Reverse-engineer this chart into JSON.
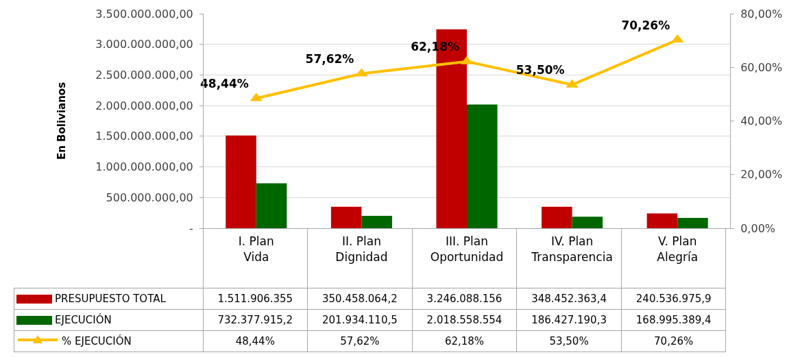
{
  "chart_data": {
    "type": "bar",
    "categories": [
      "I. Plan Vida",
      "II. Plan Dignidad",
      "III. Plan Oportunidad",
      "IV. Plan Transparencia",
      "V. Plan Alegría"
    ],
    "series": [
      {
        "name": "PRESUPUESTO TOTAL",
        "color": "#c00000",
        "values": [
          1511906355,
          350458064.2,
          3246088156,
          348452363.4,
          240536975.9
        ],
        "value_labels": [
          "1.511.906.355",
          "350.458.064,2",
          "3.246.088.156",
          "348.452.363,4",
          "240.536.975,9"
        ]
      },
      {
        "name": "EJECUCIÓN",
        "color": "#006600",
        "values": [
          732377915.2,
          201934110.5,
          2018558554,
          186427190.3,
          168995389.4
        ],
        "value_labels": [
          "732.377.915,2",
          "201.934.110,5",
          "2.018.558.554",
          "186.427.190,3",
          "168.995.389,4"
        ]
      },
      {
        "name": "% EJECUCIÓN",
        "type": "line",
        "axis": "y2",
        "color": "#ffc000",
        "values": [
          48.44,
          57.62,
          62.18,
          53.5,
          70.26
        ],
        "value_labels": [
          "48,44%",
          "57,62%",
          "62,18%",
          "53,50%",
          "70,26%"
        ]
      }
    ],
    "ylabel": "En Bolivianos",
    "ylim": [
      0,
      3500000000
    ],
    "yticks": [
      {
        "value": 0,
        "label": "-"
      },
      {
        "value": 500000000,
        "label": "500.000.000,00"
      },
      {
        "value": 1000000000,
        "label": "1.000.000.000,00"
      },
      {
        "value": 1500000000,
        "label": "1.500.000.000,00"
      },
      {
        "value": 2000000000,
        "label": "2.000.000.000,00"
      },
      {
        "value": 2500000000,
        "label": "2.500.000.000,00"
      },
      {
        "value": 3000000000,
        "label": "3.000.000.000,00"
      },
      {
        "value": 3500000000,
        "label": "3.500.000.000,00"
      }
    ],
    "y2lim": [
      0,
      80
    ],
    "y2ticks": [
      {
        "value": 0,
        "label": "0,00%"
      },
      {
        "value": 20,
        "label": "20,00%"
      },
      {
        "value": 40,
        "label": "40,00%"
      },
      {
        "value": 60,
        "label": "60,00%"
      },
      {
        "value": 80,
        "label": "80,00%"
      }
    ],
    "grid": "y",
    "legend": "bottom",
    "marker": "triangle",
    "line_style": "solid"
  }
}
